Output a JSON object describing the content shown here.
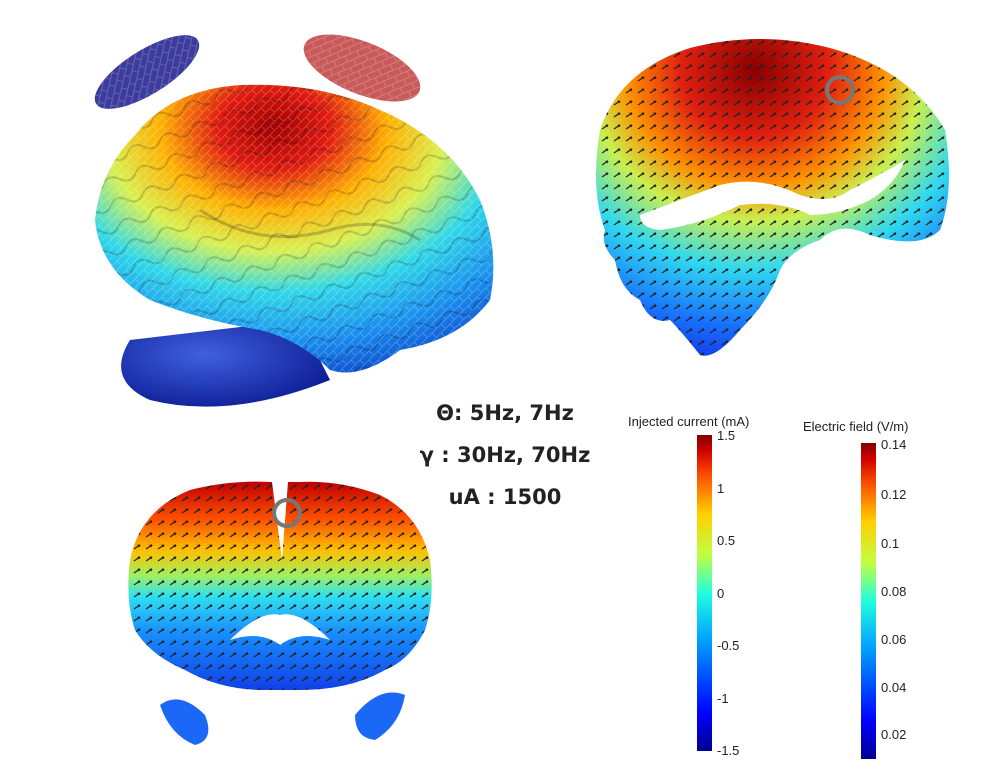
{
  "parameters": {
    "theta": "Θ: 5Hz, 7Hz",
    "gamma": "γ : 30Hz, 70Hz",
    "amplitude": "uA : 1500"
  },
  "colorbars": {
    "current": {
      "title": "Injected current (mA)",
      "ticks": [
        "1.5",
        "1",
        "0.5",
        "0",
        "-0.5",
        "-1",
        "-1.5"
      ]
    },
    "field": {
      "title": "Electric field (V/m)",
      "ticks": [
        "0.14",
        "0.12",
        "0.1",
        "0.08",
        "0.06",
        "0.04",
        "0.02"
      ]
    }
  },
  "colormap": [
    "#00008f",
    "#0000ff",
    "#00a0ff",
    "#20ffdf",
    "#c0ff40",
    "#ffd000",
    "#ff5000",
    "#d00000",
    "#800000"
  ],
  "electrode_colors": {
    "cathode": "#3c3c9c",
    "anode": "#c95a5a"
  }
}
